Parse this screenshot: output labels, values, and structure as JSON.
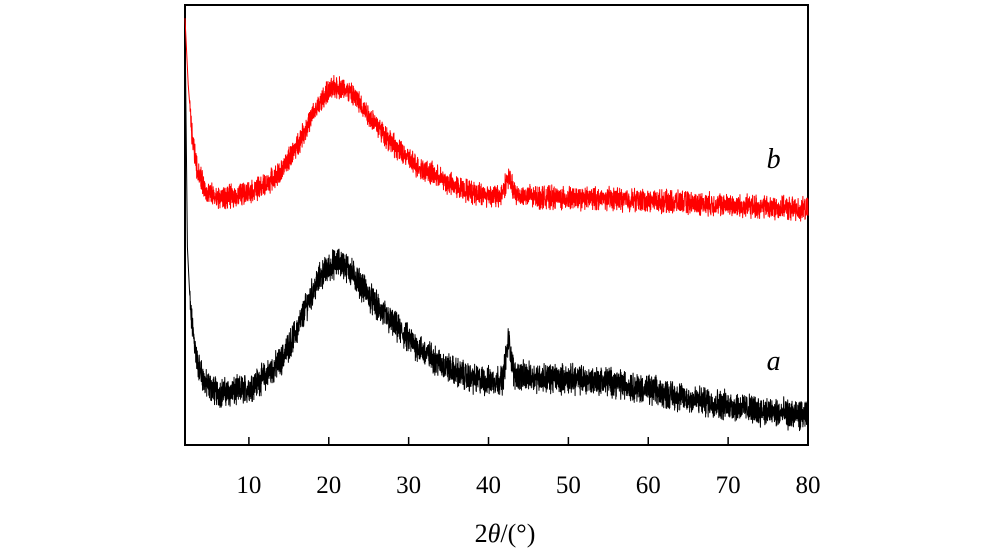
{
  "chart_data": {
    "type": "line",
    "title": "",
    "xlabel_prefix": "2",
    "xlabel_theta": "θ",
    "xlabel_suffix": "/(°)",
    "ylabel": "",
    "xlim": [
      2,
      80
    ],
    "ylim": [
      0,
      100
    ],
    "xticks": [
      10,
      20,
      30,
      40,
      50,
      60,
      70,
      80
    ],
    "xtick_labels": [
      "10",
      "20",
      "30",
      "40",
      "50",
      "60",
      "70",
      "80"
    ],
    "grid": false,
    "series": [
      {
        "name": "a",
        "color": "#000000",
        "noise": 2.6,
        "points": [
          [
            2.0,
            97
          ],
          [
            2.3,
            45
          ],
          [
            2.7,
            30
          ],
          [
            3.5,
            19
          ],
          [
            4.5,
            14
          ],
          [
            6,
            12
          ],
          [
            8,
            12
          ],
          [
            10,
            13
          ],
          [
            12,
            15.5
          ],
          [
            14,
            19
          ],
          [
            16,
            26
          ],
          [
            17.5,
            33
          ],
          [
            19,
            38.5
          ],
          [
            20.5,
            41
          ],
          [
            21.5,
            41.5
          ],
          [
            22.5,
            40
          ],
          [
            24,
            36.5
          ],
          [
            26,
            31.5
          ],
          [
            28,
            27.5
          ],
          [
            30,
            24
          ],
          [
            32,
            21
          ],
          [
            34,
            18.5
          ],
          [
            36,
            16.5
          ],
          [
            38,
            15
          ],
          [
            40,
            14.5
          ],
          [
            41.8,
            15
          ],
          [
            42.5,
            24
          ],
          [
            43.2,
            16
          ],
          [
            45,
            15.5
          ],
          [
            50,
            15
          ],
          [
            55,
            14.5
          ],
          [
            60,
            12.5
          ],
          [
            65,
            10.5
          ],
          [
            70,
            9
          ],
          [
            75,
            7.5
          ],
          [
            80,
            6.5
          ]
        ]
      },
      {
        "name": "b",
        "color": "#ff0000",
        "noise": 2.0,
        "points": [
          [
            2.0,
            97
          ],
          [
            2.4,
            82
          ],
          [
            2.9,
            70
          ],
          [
            3.5,
            63
          ],
          [
            4.5,
            58
          ],
          [
            6,
            56
          ],
          [
            8,
            56.5
          ],
          [
            10,
            57.5
          ],
          [
            12,
            59
          ],
          [
            14,
            62
          ],
          [
            16,
            68
          ],
          [
            18,
            75
          ],
          [
            19.5,
            79.5
          ],
          [
            20.8,
            81.5
          ],
          [
            22,
            81
          ],
          [
            23.5,
            78.5
          ],
          [
            25,
            75
          ],
          [
            27,
            70.5
          ],
          [
            29,
            66.5
          ],
          [
            31,
            63.5
          ],
          [
            33,
            61.5
          ],
          [
            35,
            59.5
          ],
          [
            37,
            58
          ],
          [
            39,
            57
          ],
          [
            41.5,
            56.5
          ],
          [
            42.5,
            61
          ],
          [
            43.3,
            57
          ],
          [
            45,
            56.5
          ],
          [
            50,
            56
          ],
          [
            55,
            56
          ],
          [
            60,
            55.5
          ],
          [
            65,
            55
          ],
          [
            70,
            54.5
          ],
          [
            75,
            54
          ],
          [
            80,
            53.5
          ]
        ]
      }
    ],
    "annotations": [
      {
        "text": "b",
        "x": 75.7,
        "y": 63
      },
      {
        "text": "a",
        "x": 75.7,
        "y": 17
      }
    ]
  }
}
